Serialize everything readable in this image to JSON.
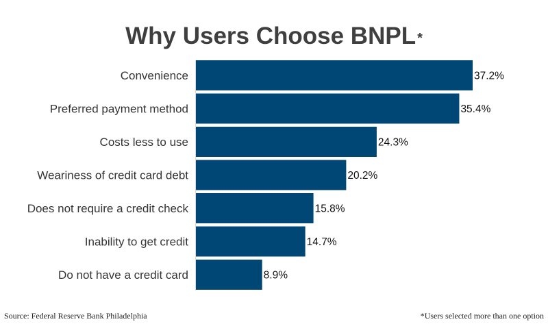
{
  "chart_data": {
    "type": "bar",
    "orientation": "horizontal",
    "title": "Why Users Choose BNPL",
    "title_marker": "*",
    "categories": [
      "Convenience",
      "Preferred payment method",
      "Costs less to use",
      "Weariness of credit card debt",
      "Does not require a credit check",
      "Inability to get credit",
      "Do not have a credit card"
    ],
    "values": [
      37.2,
      35.4,
      24.3,
      20.2,
      15.8,
      14.7,
      8.9
    ],
    "value_labels": [
      "37.2%",
      "35.4%",
      "24.3%",
      "20.2%",
      "15.8%",
      "14.7%",
      "8.9%"
    ],
    "xlim": [
      0,
      37.2
    ],
    "grid": false,
    "legend": "none",
    "bar_color": "#004775"
  },
  "footer": {
    "source": "Source: Federal Reserve Bank Philadelphia",
    "note": "*Users selected more than one option"
  }
}
